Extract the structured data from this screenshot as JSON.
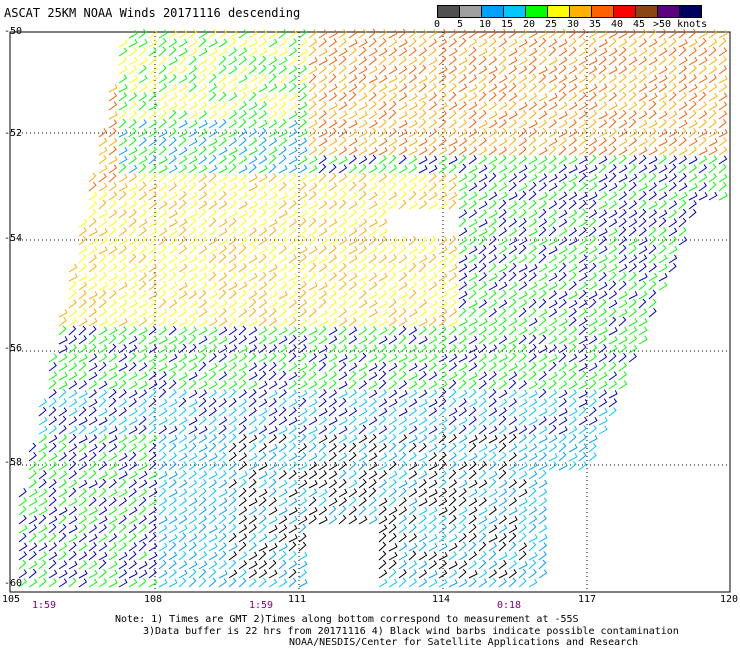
{
  "title": "ASCAT 25KM NOAA Winds 20171116 descending",
  "legend": {
    "labels": [
      "0",
      "5",
      "10",
      "15",
      "20",
      "25",
      "30",
      "35",
      "40",
      "45",
      ">50 knots"
    ],
    "colors": [
      "#505050",
      "#a0a0a0",
      "#00a0ff",
      "#00c8ff",
      "#00ff00",
      "#ffff00",
      "#ffb000",
      "#ff6000",
      "#ff0000",
      "#8b4513",
      "#5a0080",
      "#000060"
    ]
  },
  "map": {
    "latitude_labels": [
      "-50",
      "-52",
      "-54",
      "-56",
      "-58",
      "-60"
    ],
    "longitude_labels": [
      "105",
      "108",
      "111",
      "114",
      "117",
      "120"
    ],
    "time_labels": [
      "1:59",
      "1:59",
      "0:18"
    ],
    "lat_range": [
      -60,
      -50
    ],
    "lon_range": [
      105,
      120
    ]
  },
  "notes": {
    "line1": "Note: 1) Times are GMT 2)Times along bottom correspond to measurement at -55S",
    "line2": "3)Data buffer is 22 hrs from 20171116 4) Black wind barbs indicate possible contamination",
    "line3": "NOAA/NESDIS/Center for Satellite Applications and Research"
  }
}
